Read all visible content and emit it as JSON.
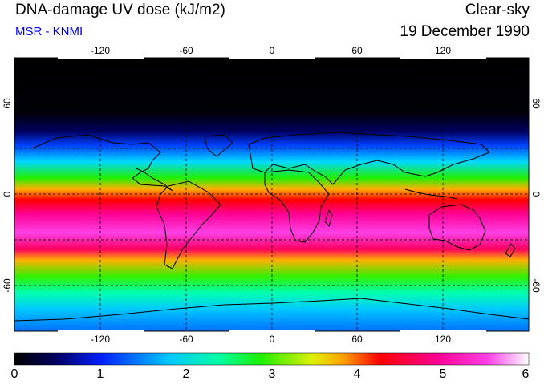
{
  "header": {
    "title": "DNA-damage UV dose (kJ/m2)",
    "subtitle": "MSR - KNMI",
    "sky_condition": "Clear-sky",
    "date": "19 December 1990"
  },
  "map": {
    "longitude_labels": [
      "-120",
      "-60",
      "0",
      "60",
      "120"
    ],
    "latitude_labels_left": [
      "60",
      "0",
      "-60"
    ],
    "latitude_labels_right": [
      "60",
      "0",
      "-60"
    ],
    "graticule_step_deg": 30
  },
  "colorbar": {
    "min": 0,
    "max": 6,
    "labels": [
      "0",
      "1",
      "2",
      "3",
      "4",
      "5",
      "6"
    ],
    "colors": [
      "#000000",
      "#000090",
      "#0040ff",
      "#00c8ff",
      "#00ffb0",
      "#20f000",
      "#c0f000",
      "#ffb000",
      "#ff0000",
      "#ff0090",
      "#ff40e8",
      "#ffffff"
    ]
  }
}
